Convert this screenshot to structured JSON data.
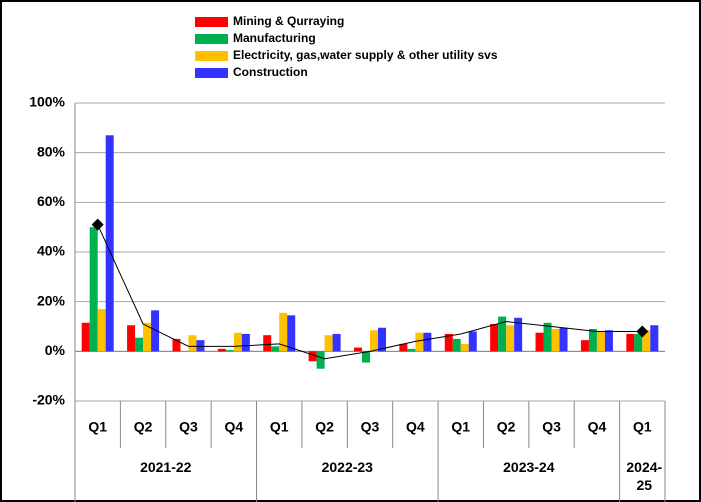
{
  "chart_data": {
    "type": "bar",
    "categories": [
      "Q1",
      "Q2",
      "Q3",
      "Q4",
      "Q1",
      "Q2",
      "Q3",
      "Q4",
      "Q1",
      "Q2",
      "Q3",
      "Q4",
      "Q1"
    ],
    "groups": [
      {
        "label": "2021-22",
        "span": 4
      },
      {
        "label": "2022-23",
        "span": 4
      },
      {
        "label": "2023-24",
        "span": 4
      },
      {
        "label": "2024-25",
        "span": 1
      }
    ],
    "series": [
      {
        "name": "Mining & Qurraying",
        "color": "#ff0000",
        "values": [
          11.5,
          10.5,
          5,
          1,
          6.5,
          -4,
          1.5,
          3,
          7,
          11,
          7.5,
          4.5,
          7
        ]
      },
      {
        "name": "Manufacturing",
        "color": "#00b050",
        "values": [
          50,
          5.5,
          0,
          0.5,
          2,
          -7,
          -4.5,
          1,
          5,
          14,
          11.5,
          9,
          7
        ]
      },
      {
        "name": "Electricity, gas,water supply & other utility svs",
        "color": "#ffc000",
        "values": [
          17,
          11.5,
          6.5,
          7.5,
          15.5,
          6.5,
          8.5,
          7.5,
          3,
          10.5,
          9,
          8,
          8.5
        ]
      },
      {
        "name": "Construction",
        "color": "#3333ff",
        "values": [
          87,
          16.5,
          4.5,
          7,
          14.5,
          7,
          9.5,
          7.5,
          8,
          13.5,
          9.5,
          8.5,
          10.5
        ]
      }
    ],
    "line_series": {
      "color": "#000000",
      "values": [
        51,
        11,
        2,
        2,
        3,
        -3,
        0,
        4,
        7,
        12,
        10,
        8,
        8
      ]
    },
    "ylim": [
      -20,
      100
    ],
    "yticks": [
      {
        "value": -20,
        "label": "-20%"
      },
      {
        "value": 0,
        "label": "0%"
      },
      {
        "value": 20,
        "label": "20%"
      },
      {
        "value": 40,
        "label": "40%"
      },
      {
        "value": 60,
        "label": "60%"
      },
      {
        "value": 80,
        "label": "80%"
      },
      {
        "value": 100,
        "label": "100%"
      }
    ],
    "grid": true
  }
}
